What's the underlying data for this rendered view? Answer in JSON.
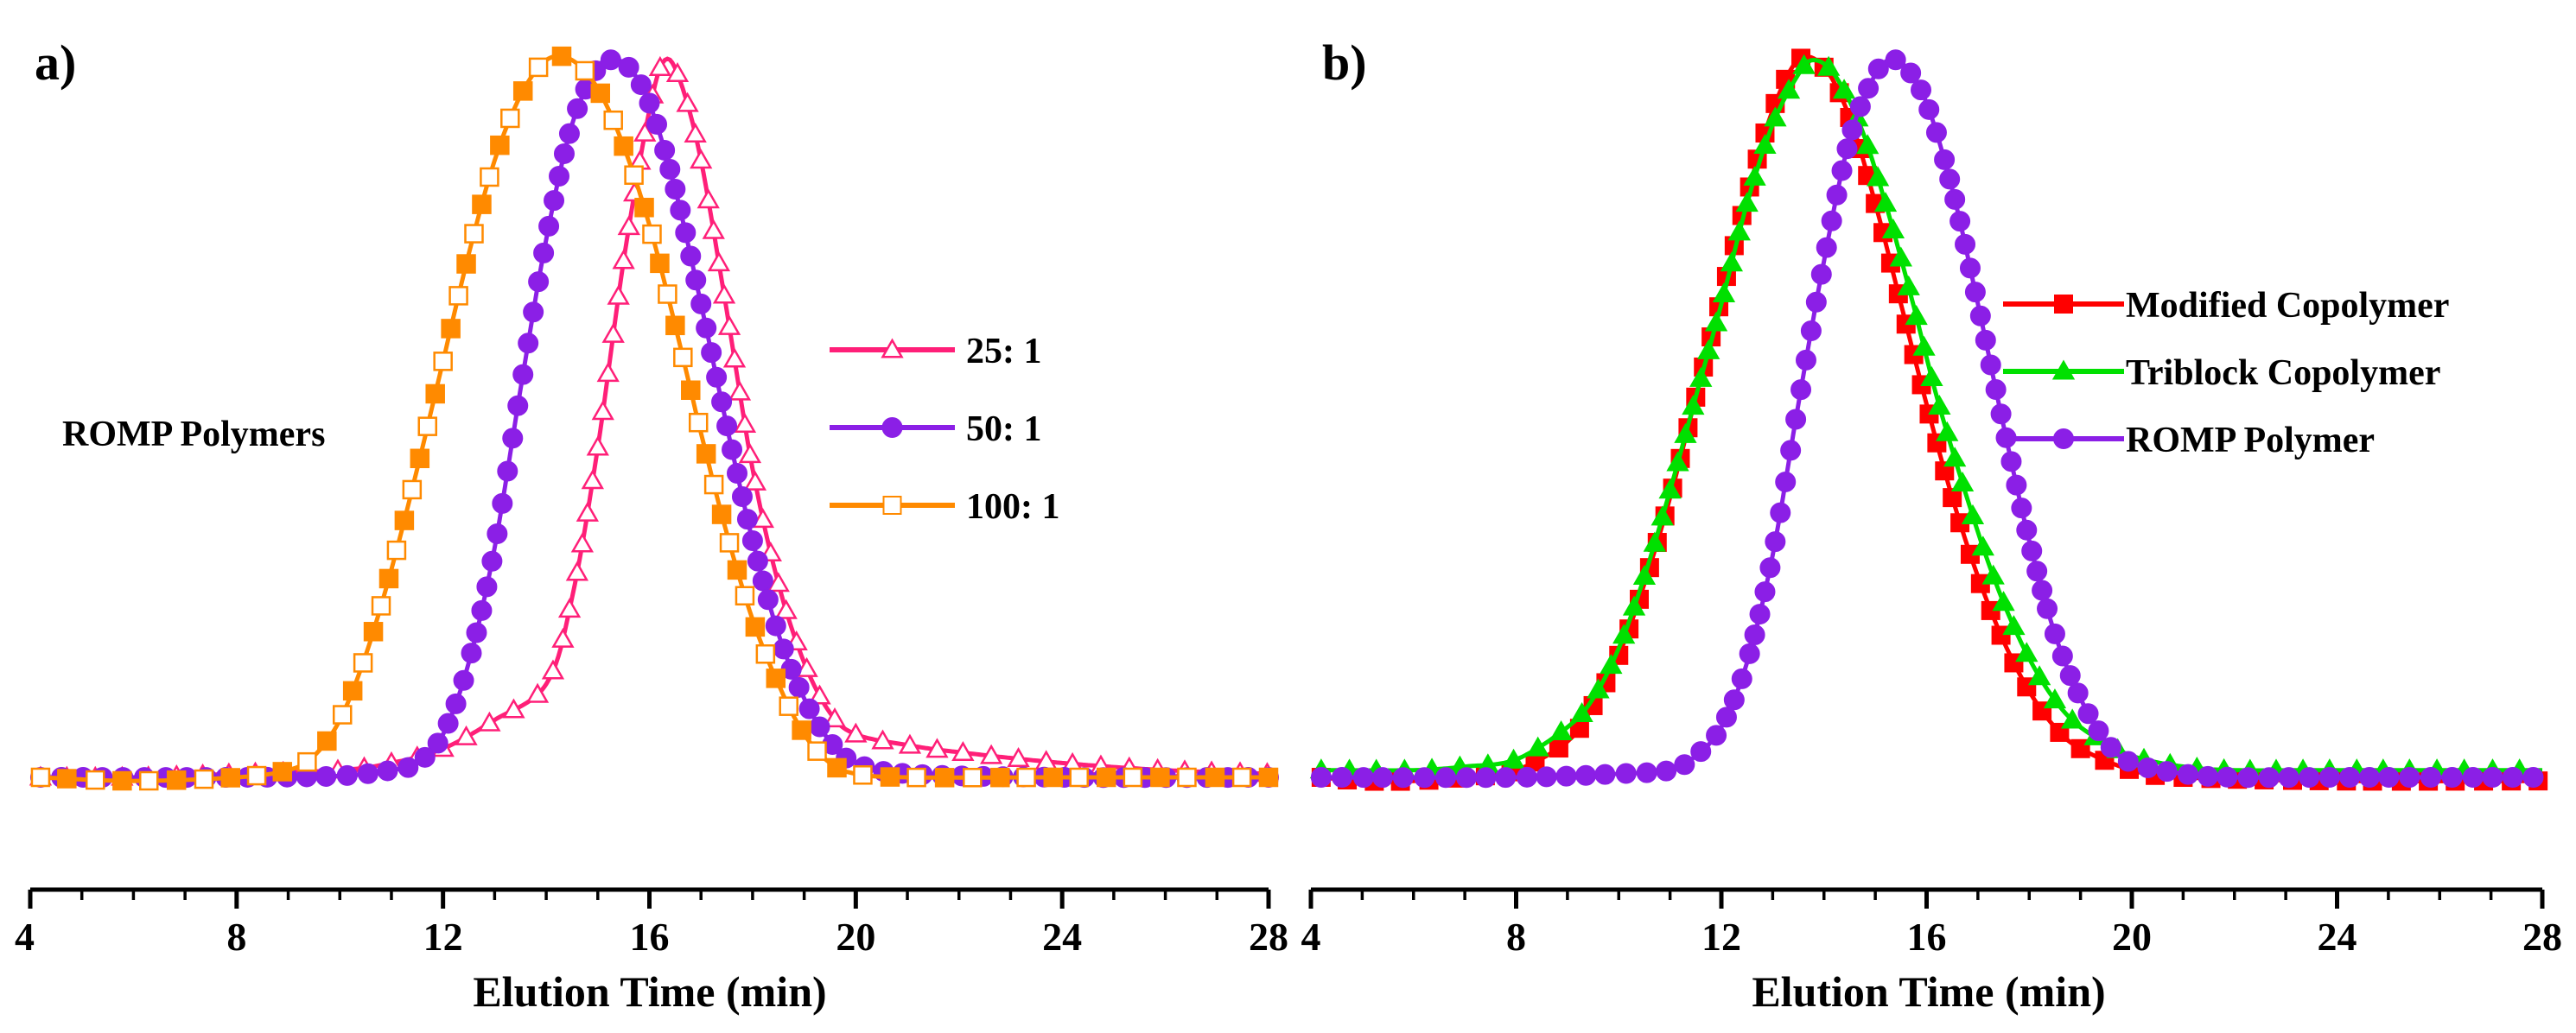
{
  "chart_data": [
    {
      "panel_label": "a)",
      "type": "line",
      "xlabel": "Elution Time (min)",
      "ylabel": "",
      "xlim": [
        4,
        28
      ],
      "ylim": [
        0,
        1.05
      ],
      "xticks": [
        4,
        8,
        12,
        16,
        20,
        24,
        28
      ],
      "grid": false,
      "legend_position": "center-right",
      "annotation": "ROMP Polymers",
      "series": [
        {
          "name": "25: 1",
          "color": "#ff1f78",
          "marker": "triangle-open",
          "points": [
            [
              4.2,
              0.0
            ],
            [
              6,
              0.0
            ],
            [
              8,
              0.005
            ],
            [
              10,
              0.01
            ],
            [
              11,
              0.02
            ],
            [
              12,
              0.04
            ],
            [
              13,
              0.08
            ],
            [
              14,
              0.13
            ],
            [
              14.5,
              0.25
            ],
            [
              15,
              0.46
            ],
            [
              15.5,
              0.72
            ],
            [
              16,
              0.93
            ],
            [
              16.3,
              1.0
            ],
            [
              16.6,
              0.97
            ],
            [
              17,
              0.86
            ],
            [
              17.5,
              0.65
            ],
            [
              18,
              0.43
            ],
            [
              18.5,
              0.27
            ],
            [
              19,
              0.16
            ],
            [
              19.5,
              0.09
            ],
            [
              20,
              0.06
            ],
            [
              21,
              0.045
            ],
            [
              22,
              0.035
            ],
            [
              24,
              0.02
            ],
            [
              26,
              0.01
            ],
            [
              28,
              0.005
            ]
          ]
        },
        {
          "name": "50: 1",
          "color": "#8b1fe6",
          "marker": "circle-filled",
          "points": [
            [
              4.2,
              0.0
            ],
            [
              8,
              0.0
            ],
            [
              10,
              0.002
            ],
            [
              11,
              0.01
            ],
            [
              11.5,
              0.02
            ],
            [
              12,
              0.06
            ],
            [
              12.5,
              0.16
            ],
            [
              13,
              0.32
            ],
            [
              13.5,
              0.54
            ],
            [
              14,
              0.75
            ],
            [
              14.5,
              0.91
            ],
            [
              15,
              0.99
            ],
            [
              15.3,
              1.0
            ],
            [
              15.6,
              0.99
            ],
            [
              16,
              0.94
            ],
            [
              16.5,
              0.82
            ],
            [
              17,
              0.66
            ],
            [
              17.5,
              0.49
            ],
            [
              18,
              0.33
            ],
            [
              18.5,
              0.2
            ],
            [
              19,
              0.11
            ],
            [
              19.5,
              0.05
            ],
            [
              20,
              0.02
            ],
            [
              21,
              0.005
            ],
            [
              24,
              0.0
            ],
            [
              28,
              0.0
            ]
          ]
        },
        {
          "name": "100: 1",
          "color": "#ff8a00",
          "marker": "square-mixed",
          "points": [
            [
              4.2,
              0.0
            ],
            [
              6,
              -0.005
            ],
            [
              8,
              0.0
            ],
            [
              9,
              0.01
            ],
            [
              9.5,
              0.03
            ],
            [
              10,
              0.08
            ],
            [
              10.5,
              0.17
            ],
            [
              11,
              0.29
            ],
            [
              11.5,
              0.43
            ],
            [
              12,
              0.58
            ],
            [
              12.5,
              0.73
            ],
            [
              13,
              0.86
            ],
            [
              13.5,
              0.95
            ],
            [
              14,
              1.0
            ],
            [
              14.5,
              1.0
            ],
            [
              15,
              0.96
            ],
            [
              15.5,
              0.88
            ],
            [
              16,
              0.77
            ],
            [
              16.5,
              0.63
            ],
            [
              17,
              0.48
            ],
            [
              17.5,
              0.34
            ],
            [
              18,
              0.22
            ],
            [
              18.5,
              0.13
            ],
            [
              19,
              0.06
            ],
            [
              19.5,
              0.02
            ],
            [
              20,
              0.005
            ],
            [
              21,
              0.0
            ],
            [
              24,
              0.0
            ],
            [
              28,
              0.0
            ]
          ]
        }
      ]
    },
    {
      "panel_label": "b)",
      "type": "line",
      "xlabel": "Elution Time (min)",
      "ylabel": "",
      "xlim": [
        4,
        28
      ],
      "ylim": [
        0,
        1.05
      ],
      "xticks": [
        4,
        8,
        12,
        16,
        20,
        24,
        28
      ],
      "grid": false,
      "legend_position": "center-right",
      "series": [
        {
          "name": "Modified Copolymer",
          "color": "#ff0000",
          "marker": "square-filled",
          "points": [
            [
              4.2,
              0.0
            ],
            [
              5,
              -0.005
            ],
            [
              6,
              -0.005
            ],
            [
              7,
              0.0
            ],
            [
              8,
              0.01
            ],
            [
              9,
              0.05
            ],
            [
              9.5,
              0.1
            ],
            [
              10,
              0.17
            ],
            [
              10.5,
              0.27
            ],
            [
              11,
              0.39
            ],
            [
              11.5,
              0.53
            ],
            [
              12,
              0.67
            ],
            [
              12.5,
              0.81
            ],
            [
              13,
              0.93
            ],
            [
              13.5,
              1.0
            ],
            [
              14,
              0.99
            ],
            [
              14.5,
              0.92
            ],
            [
              15,
              0.8
            ],
            [
              15.5,
              0.66
            ],
            [
              16,
              0.52
            ],
            [
              16.5,
              0.39
            ],
            [
              17,
              0.28
            ],
            [
              17.5,
              0.19
            ],
            [
              18,
              0.12
            ],
            [
              18.5,
              0.07
            ],
            [
              19,
              0.04
            ],
            [
              20,
              0.01
            ],
            [
              21,
              0.0
            ],
            [
              24,
              -0.005
            ],
            [
              28,
              -0.005
            ]
          ]
        },
        {
          "name": "Triblock Copolymer",
          "color": "#00e000",
          "marker": "triangle-filled",
          "points": [
            [
              4.2,
              0.01
            ],
            [
              6,
              0.01
            ],
            [
              7,
              0.015
            ],
            [
              8,
              0.025
            ],
            [
              9,
              0.07
            ],
            [
              9.5,
              0.11
            ],
            [
              10,
              0.18
            ],
            [
              10.5,
              0.28
            ],
            [
              11,
              0.4
            ],
            [
              11.5,
              0.53
            ],
            [
              12,
              0.66
            ],
            [
              12.5,
              0.8
            ],
            [
              13,
              0.91
            ],
            [
              13.5,
              0.98
            ],
            [
              13.8,
              1.0
            ],
            [
              14.2,
              0.98
            ],
            [
              14.7,
              0.91
            ],
            [
              15.2,
              0.8
            ],
            [
              15.7,
              0.67
            ],
            [
              16.2,
              0.53
            ],
            [
              16.7,
              0.41
            ],
            [
              17.2,
              0.3
            ],
            [
              17.7,
              0.21
            ],
            [
              18.2,
              0.14
            ],
            [
              18.7,
              0.09
            ],
            [
              19.2,
              0.06
            ],
            [
              20,
              0.03
            ],
            [
              21,
              0.015
            ],
            [
              22,
              0.01
            ],
            [
              24,
              0.01
            ],
            [
              28,
              0.01
            ]
          ]
        },
        {
          "name": "ROMP Polymer",
          "color": "#8b1fe6",
          "marker": "circle-filled",
          "points": [
            [
              4.2,
              0.0
            ],
            [
              8,
              0.0
            ],
            [
              10,
              0.005
            ],
            [
              11,
              0.01
            ],
            [
              11.5,
              0.03
            ],
            [
              12,
              0.07
            ],
            [
              12.5,
              0.16
            ],
            [
              13,
              0.31
            ],
            [
              13.5,
              0.52
            ],
            [
              14,
              0.72
            ],
            [
              14.5,
              0.89
            ],
            [
              15,
              0.98
            ],
            [
              15.3,
              1.0
            ],
            [
              15.6,
              0.99
            ],
            [
              16,
              0.94
            ],
            [
              16.5,
              0.82
            ],
            [
              17,
              0.66
            ],
            [
              17.5,
              0.49
            ],
            [
              18,
              0.33
            ],
            [
              18.5,
              0.2
            ],
            [
              19,
              0.11
            ],
            [
              19.5,
              0.05
            ],
            [
              20,
              0.02
            ],
            [
              21,
              0.005
            ],
            [
              22,
              0.0
            ],
            [
              24,
              0.0
            ],
            [
              28,
              0.0
            ]
          ]
        }
      ]
    }
  ]
}
